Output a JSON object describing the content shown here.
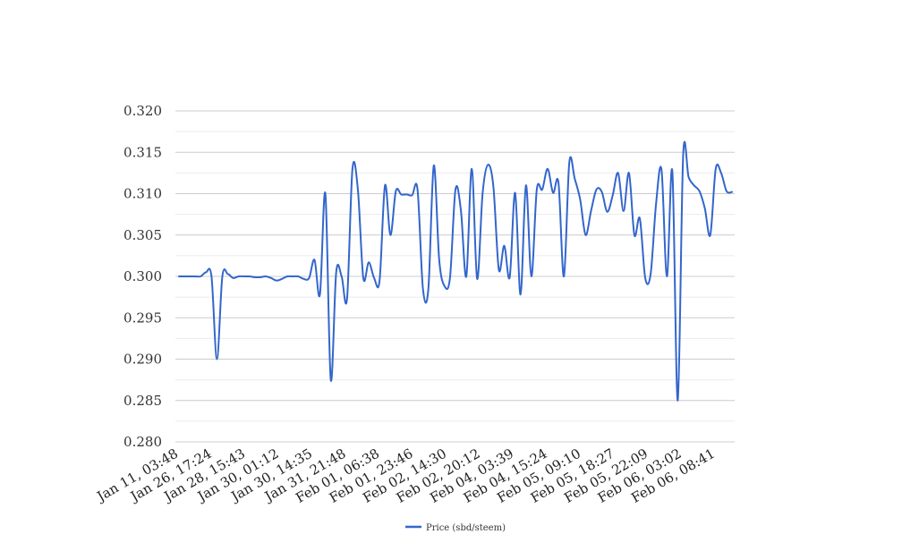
{
  "chart_data": {
    "type": "line",
    "title": "",
    "xlabel": "",
    "ylabel": "",
    "ylim": [
      0.28,
      0.32
    ],
    "grid": true,
    "legend": "bottom-center",
    "color": "#3366cc",
    "y_ticks": [
      "0.280",
      "0.285",
      "0.290",
      "0.295",
      "0.300",
      "0.305",
      "0.310",
      "0.315",
      "0.320"
    ],
    "x_tick_labels": [
      "Jan 11, 03:48",
      "Jan 26, 17:24",
      "Jan 28, 15:43",
      "Jan 30, 01:12",
      "Jan 30, 14:35",
      "Jan 31, 21:48",
      "Feb 01, 06:38",
      "Feb 01, 23:46",
      "Feb 02, 14:30",
      "Feb 02, 20:12",
      "Feb 04, 03:39",
      "Feb 04, 15:24",
      "Feb 05, 09:10",
      "Feb 05, 18:27",
      "Feb 05, 22:09",
      "Feb 06, 03:02",
      "Feb 06, 08:41"
    ],
    "series": [
      {
        "name": "Price (sbd/steem)",
        "values": [
          0.3,
          0.3,
          0.3,
          0.3,
          0.3,
          0.3005,
          0.3,
          0.29,
          0.3,
          0.3003,
          0.2998,
          0.3,
          0.3,
          0.3,
          0.2999,
          0.2999,
          0.3,
          0.2998,
          0.2995,
          0.2997,
          0.3,
          0.3,
          0.3,
          0.2997,
          0.2998,
          0.302,
          0.2978,
          0.31,
          0.2875,
          0.3005,
          0.3,
          0.2973,
          0.313,
          0.3105,
          0.2998,
          0.3017,
          0.2998,
          0.2995,
          0.311,
          0.305,
          0.3103,
          0.3099,
          0.3099,
          0.3098,
          0.3105,
          0.2985,
          0.2985,
          0.3134,
          0.302,
          0.2988,
          0.2999,
          0.3105,
          0.308,
          0.3,
          0.313,
          0.2997,
          0.31,
          0.3135,
          0.3108,
          0.3008,
          0.3037,
          0.2999,
          0.3101,
          0.2978,
          0.311,
          0.3,
          0.3105,
          0.3105,
          0.313,
          0.3101,
          0.3113,
          0.3,
          0.3138,
          0.3118,
          0.3093,
          0.305,
          0.3079,
          0.3105,
          0.3102,
          0.3078,
          0.3098,
          0.3125,
          0.3079,
          0.3125,
          0.305,
          0.307,
          0.2998,
          0.3003,
          0.3088,
          0.3129,
          0.3,
          0.3127,
          0.285,
          0.3147,
          0.312,
          0.311,
          0.3103,
          0.3082,
          0.305,
          0.313,
          0.3125,
          0.3103,
          0.3102
        ]
      }
    ]
  }
}
